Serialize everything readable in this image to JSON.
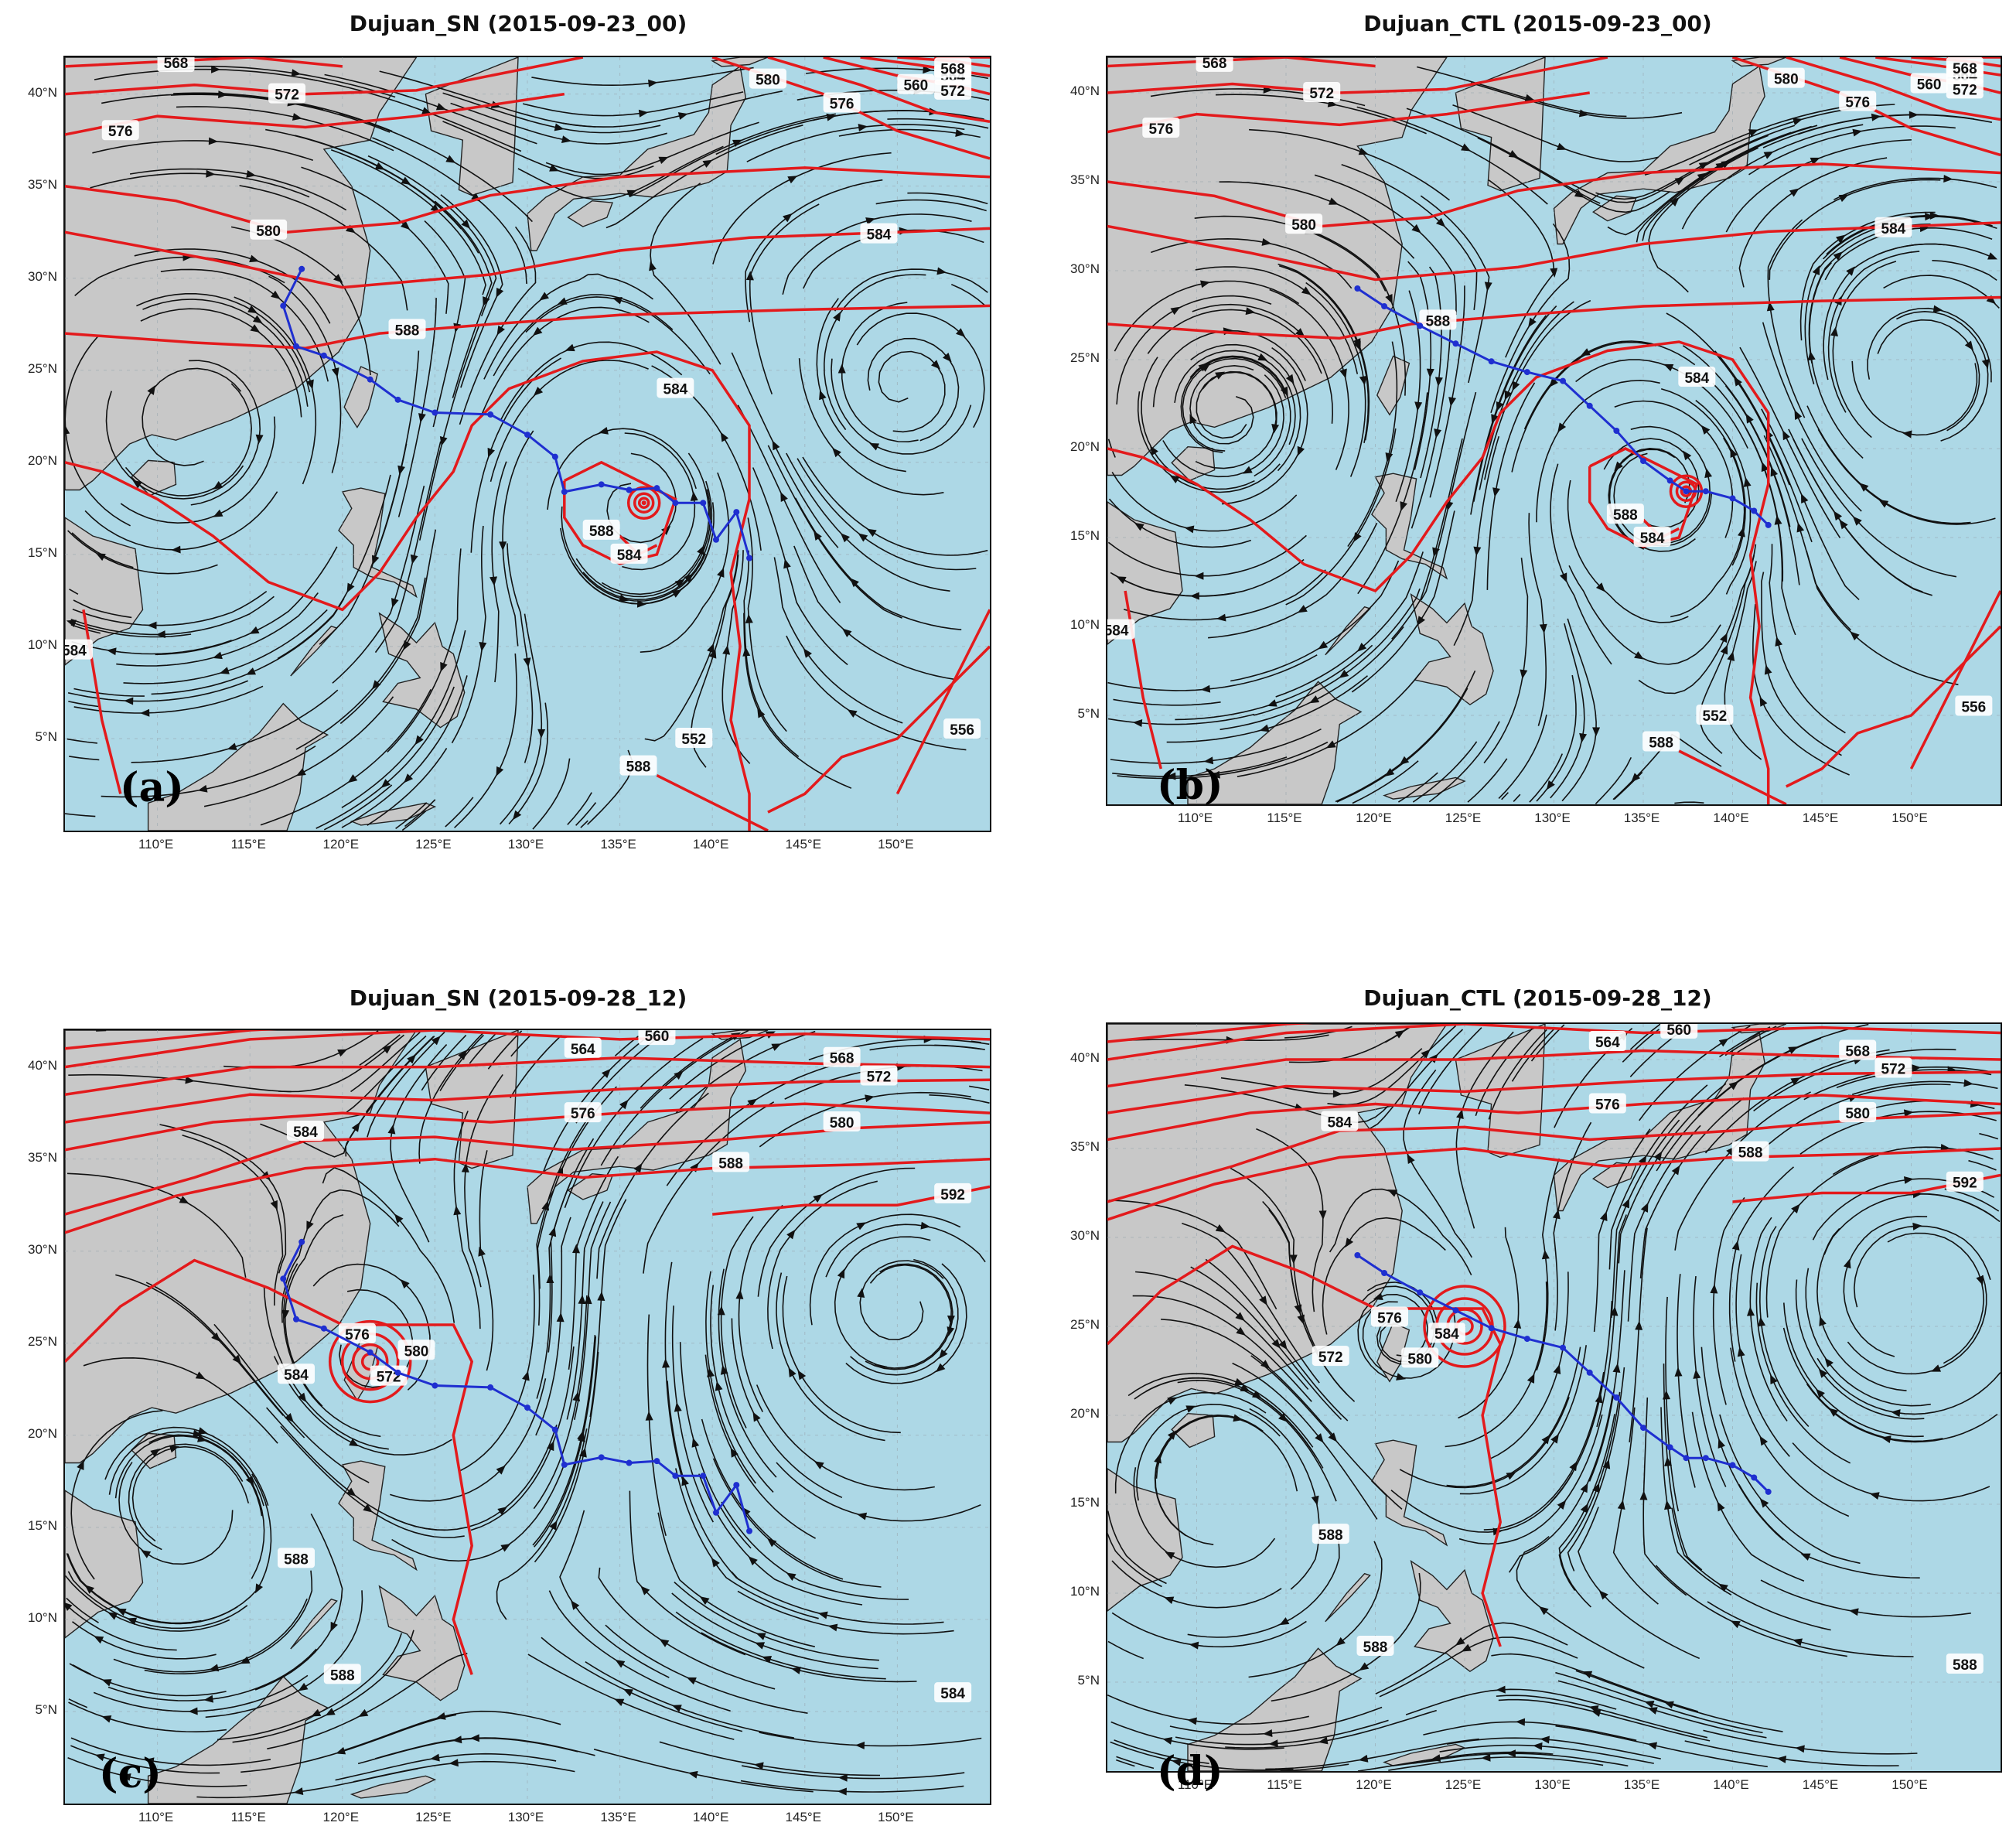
{
  "panels": [
    {
      "title": "Dujuan_SN (2015-09-23_00)",
      "letter": "(a)",
      "contours": [
        {
          "label": "568"
        },
        {
          "label": "572"
        },
        {
          "label": "576"
        },
        {
          "label": "580"
        },
        {
          "label": "584"
        },
        {
          "label": "588"
        },
        {
          "label": "584"
        },
        {
          "label": "584"
        },
        {
          "label": "588"
        },
        {
          "label": "588"
        },
        {
          "label": "584"
        },
        {
          "label": "552"
        },
        {
          "label": "556"
        },
        {
          "label": "560"
        },
        {
          "label": "564"
        },
        {
          "label": "568"
        },
        {
          "label": "572"
        },
        {
          "label": "576"
        },
        {
          "label": "580"
        }
      ]
    },
    {
      "title": "Dujuan_CTL (2015-09-23_00)",
      "letter": "(b)",
      "contours": [
        {
          "label": "568"
        },
        {
          "label": "572"
        },
        {
          "label": "576"
        },
        {
          "label": "580"
        },
        {
          "label": "584"
        },
        {
          "label": "588"
        },
        {
          "label": "584"
        },
        {
          "label": "584"
        },
        {
          "label": "588"
        },
        {
          "label": "588"
        },
        {
          "label": "584"
        },
        {
          "label": "552"
        },
        {
          "label": "556"
        },
        {
          "label": "560"
        },
        {
          "label": "564"
        },
        {
          "label": "568"
        },
        {
          "label": "572"
        },
        {
          "label": "576"
        },
        {
          "label": "580"
        }
      ]
    },
    {
      "title": "Dujuan_SN (2015-09-28_12)",
      "letter": "(c)",
      "contours": [
        {
          "label": "560"
        },
        {
          "label": "564"
        },
        {
          "label": "568"
        },
        {
          "label": "572"
        },
        {
          "label": "576"
        },
        {
          "label": "580"
        },
        {
          "label": "584"
        },
        {
          "label": "588"
        },
        {
          "label": "592"
        },
        {
          "label": "576"
        },
        {
          "label": "580"
        },
        {
          "label": "584"
        },
        {
          "label": "572"
        },
        {
          "label": "588"
        },
        {
          "label": "588"
        },
        {
          "label": "584"
        }
      ]
    },
    {
      "title": "Dujuan_CTL (2015-09-28_12)",
      "letter": "(d)",
      "contours": [
        {
          "label": "560"
        },
        {
          "label": "564"
        },
        {
          "label": "568"
        },
        {
          "label": "572"
        },
        {
          "label": "576"
        },
        {
          "label": "580"
        },
        {
          "label": "584"
        },
        {
          "label": "588"
        },
        {
          "label": "592"
        },
        {
          "label": "576"
        },
        {
          "label": "584"
        },
        {
          "label": "572"
        },
        {
          "label": "580"
        },
        {
          "label": "588"
        },
        {
          "label": "588"
        },
        {
          "label": "588"
        },
        {
          "label": "588"
        },
        {
          "label": "588"
        },
        {
          "label": "588"
        },
        {
          "label": "584"
        }
      ]
    }
  ],
  "lat_ticks": [
    "40°N",
    "35°N",
    "30°N",
    "25°N",
    "20°N",
    "15°N",
    "10°N",
    "5°N"
  ],
  "lon_ticks": [
    "110°E",
    "115°E",
    "120°E",
    "125°E",
    "130°E",
    "135°E",
    "140°E",
    "145°E",
    "150°E"
  ],
  "colors": {
    "ocean": "#add8e6",
    "land": "#c8c8c8",
    "contour": "#e31a1c",
    "track": "#1f2fd0",
    "streamline": "#111111"
  },
  "chart_data": {
    "type": "map",
    "projection": "lat-lon",
    "lon_range": [
      105,
      155
    ],
    "lat_range": [
      0,
      42
    ],
    "contour_variable": "geopotential height",
    "contour_levels": [
      552,
      556,
      560,
      564,
      568,
      572,
      576,
      580,
      584,
      588,
      592
    ],
    "tracks": {
      "SN": [
        [
          117.8,
          30.5
        ],
        [
          116.8,
          28.5
        ],
        [
          117.5,
          26.3
        ],
        [
          119,
          25.8
        ],
        [
          121.5,
          24.5
        ],
        [
          123,
          23.4
        ],
        [
          125,
          22.7
        ],
        [
          128,
          22.6
        ],
        [
          130,
          21.5
        ],
        [
          131.5,
          20.3
        ],
        [
          132,
          18.4
        ],
        [
          134,
          18.8
        ],
        [
          135.5,
          18.5
        ],
        [
          137,
          18.6
        ],
        [
          138,
          17.8
        ],
        [
          139.5,
          17.8
        ],
        [
          140.2,
          15.8
        ],
        [
          141.3,
          17.3
        ],
        [
          142,
          14.8
        ]
      ],
      "CTL": [
        [
          119,
          29
        ],
        [
          120.5,
          28
        ],
        [
          122.5,
          26.9
        ],
        [
          124.5,
          25.9
        ],
        [
          126.5,
          24.9
        ],
        [
          128.5,
          24.3
        ],
        [
          130.5,
          23.8
        ],
        [
          132,
          22.4
        ],
        [
          133.5,
          21
        ],
        [
          135,
          19.3
        ],
        [
          136.5,
          18.2
        ],
        [
          137.4,
          17.6
        ],
        [
          138.5,
          17.6
        ],
        [
          140,
          17.2
        ],
        [
          141.2,
          16.5
        ],
        [
          142,
          15.7
        ]
      ]
    }
  }
}
